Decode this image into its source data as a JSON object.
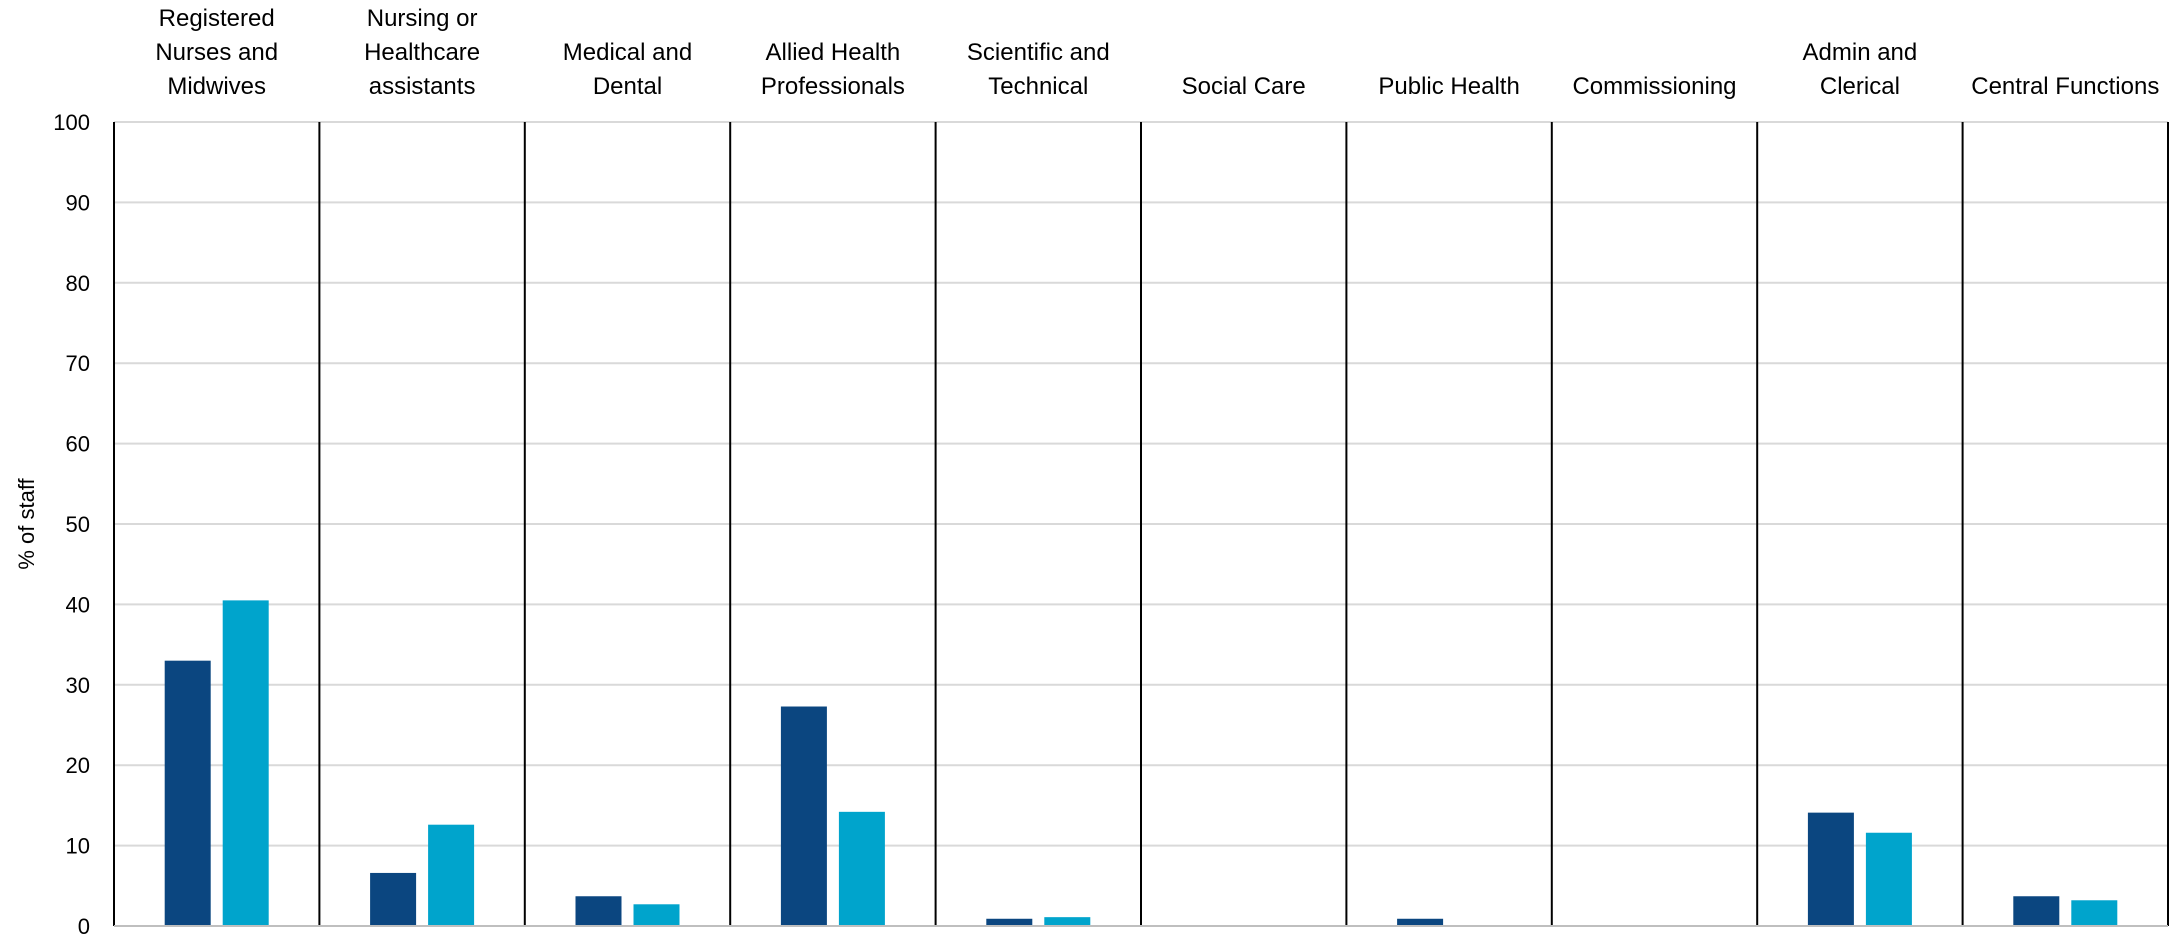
{
  "chart_data": {
    "type": "bar",
    "categories": [
      [
        "Registered",
        "Nurses and",
        "Midwives"
      ],
      [
        "Nursing or",
        "Healthcare",
        "assistants"
      ],
      [
        "Medical and",
        "Dental"
      ],
      [
        "Allied Health",
        "Professionals"
      ],
      [
        "Scientific and",
        "Technical"
      ],
      [
        "Social Care"
      ],
      [
        "Public Health"
      ],
      [
        "Commissioning"
      ],
      [
        "Admin and",
        "Clerical"
      ],
      [
        "Central Functions"
      ]
    ],
    "series": [
      {
        "color": "#0b4680",
        "values": [
          33.0,
          6.6,
          3.7,
          27.3,
          0.9,
          0.0,
          0.9,
          0.0,
          14.1,
          3.7
        ]
      },
      {
        "color": "#00a4cc",
        "values": [
          40.5,
          12.6,
          2.7,
          14.2,
          1.1,
          0.0,
          0.0,
          0.0,
          11.6,
          3.2
        ]
      }
    ],
    "ylabel": "% of staff",
    "ylim": [
      0,
      100
    ],
    "yticks": [
      0,
      10,
      20,
      30,
      40,
      50,
      60,
      70,
      80,
      90,
      100
    ],
    "grid": true,
    "legend": "none"
  }
}
